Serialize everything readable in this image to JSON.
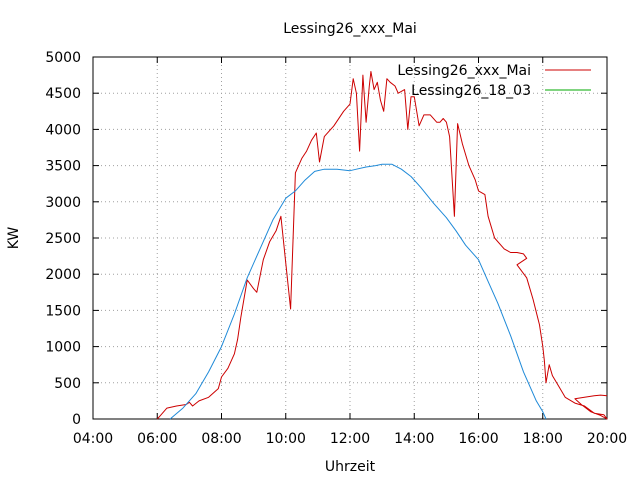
{
  "chart_data": {
    "type": "line",
    "title": "Lessing26_xxx_Mai",
    "xlabel": "Uhrzeit",
    "ylabel": "KW",
    "xlim": [
      4,
      20
    ],
    "ylim": [
      0,
      5000
    ],
    "x_ticks": [
      4,
      6,
      8,
      10,
      12,
      14,
      16,
      18,
      20
    ],
    "x_tick_labels": [
      "04:00",
      "06:00",
      "08:00",
      "10:00",
      "12:00",
      "14:00",
      "16:00",
      "18:00",
      "20:00"
    ],
    "y_ticks": [
      0,
      500,
      1000,
      1500,
      2000,
      2500,
      3000,
      3500,
      4000,
      4500,
      5000
    ],
    "y_tick_labels": [
      "0",
      "500",
      "1000",
      "1500",
      "2000",
      "2500",
      "3000",
      "3500",
      "4000",
      "4500",
      "5000"
    ],
    "grid": true,
    "legend_position": "top-right",
    "series": [
      {
        "name": "Lessing26_xxx_Mai",
        "color": "#cc0000",
        "x": [
          6.0,
          6.1,
          6.3,
          6.6,
          6.9,
          7.0,
          7.1,
          7.3,
          7.6,
          7.9,
          8.0,
          8.2,
          8.4,
          8.5,
          8.6,
          8.8,
          9.0,
          9.1,
          9.3,
          9.5,
          9.7,
          9.85,
          10.0,
          10.15,
          10.3,
          10.5,
          10.65,
          10.8,
          10.95,
          11.05,
          11.2,
          11.5,
          11.8,
          12.0,
          12.1,
          12.2,
          12.3,
          12.4,
          12.5,
          12.6,
          12.65,
          12.75,
          12.85,
          12.95,
          13.05,
          13.15,
          13.25,
          13.4,
          13.5,
          13.7,
          13.8,
          13.9,
          14.0,
          14.15,
          14.3,
          14.5,
          14.7,
          14.8,
          14.9,
          15.0,
          15.1,
          15.25,
          15.35,
          15.5,
          15.7,
          15.9,
          16.0,
          16.2,
          16.3,
          16.5,
          16.8,
          17.0,
          17.2,
          17.4,
          17.5,
          17.2,
          17.5,
          17.7,
          17.9,
          18.0,
          18.05,
          18.1,
          18.2,
          18.3,
          18.5,
          18.7,
          19.0,
          19.3,
          19.6,
          19.9,
          20.0,
          19.8,
          19.5,
          19.2,
          19.0,
          19.3,
          19.6,
          19.8,
          20.0
        ],
        "y": [
          0,
          50,
          150,
          180,
          200,
          230,
          180,
          250,
          300,
          420,
          580,
          700,
          900,
          1100,
          1400,
          1920,
          1800,
          1750,
          2200,
          2450,
          2600,
          2800,
          2150,
          1520,
          3400,
          3600,
          3700,
          3850,
          3950,
          3550,
          3900,
          4050,
          4250,
          4350,
          4700,
          4500,
          3700,
          4750,
          4100,
          4600,
          4800,
          4550,
          4650,
          4400,
          4250,
          4700,
          4650,
          4600,
          4500,
          4550,
          4000,
          4450,
          4450,
          4050,
          4200,
          4200,
          4100,
          4100,
          4150,
          4100,
          3900,
          2800,
          4080,
          3800,
          3500,
          3300,
          3150,
          3100,
          2800,
          2500,
          2350,
          2300,
          2300,
          2280,
          2220,
          2130,
          1950,
          1650,
          1300,
          1000,
          800,
          500,
          750,
          600,
          450,
          300,
          220,
          180,
          80,
          60,
          0,
          50,
          100,
          200,
          280,
          300,
          320,
          330,
          320
        ]
      },
      {
        "name": "Lessing26_18_03",
        "color": "#00aa00",
        "x": [
          6.4,
          6.8,
          7.2,
          7.6,
          8.0,
          8.4,
          8.8,
          9.2,
          9.6,
          10.0,
          10.3,
          10.6,
          10.9,
          11.2,
          11.6,
          12.0,
          12.2,
          12.5,
          12.8,
          13.0,
          13.3,
          13.6,
          13.9,
          14.2,
          14.6,
          15.0,
          15.3,
          15.6,
          16.0,
          16.3,
          16.6,
          17.0,
          17.4,
          17.8,
          18.0,
          18.1
        ],
        "y": [
          0,
          150,
          350,
          650,
          1000,
          1450,
          1950,
          2350,
          2750,
          3050,
          3150,
          3300,
          3420,
          3450,
          3450,
          3430,
          3450,
          3480,
          3500,
          3520,
          3520,
          3450,
          3350,
          3200,
          2980,
          2780,
          2600,
          2400,
          2200,
          1900,
          1600,
          1150,
          650,
          250,
          100,
          0
        ]
      }
    ]
  }
}
